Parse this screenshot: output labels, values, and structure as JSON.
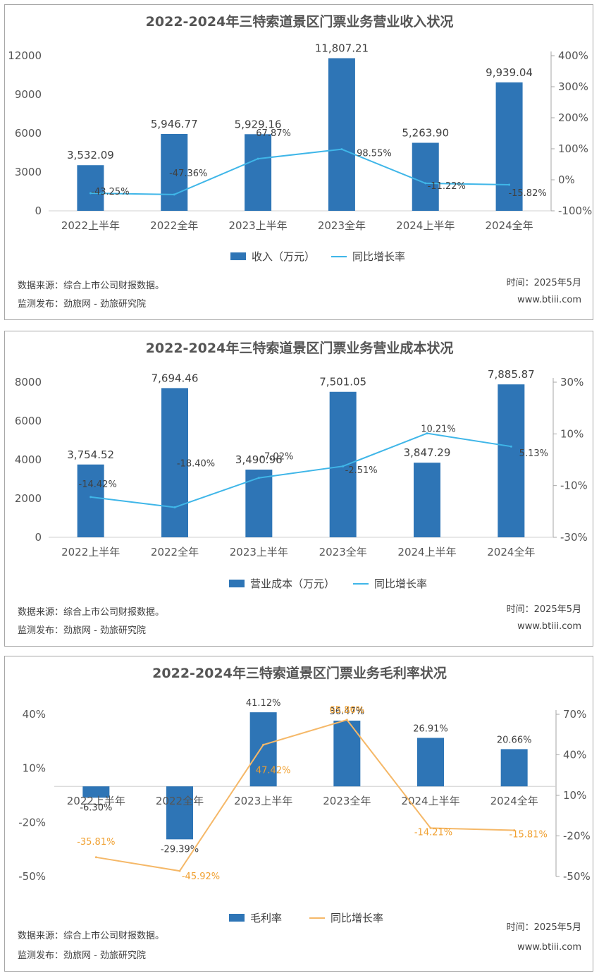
{
  "colors": {
    "bar": "#2e75b6",
    "line_blue": "#3fb6e8",
    "line_orange": "#f5b868",
    "label_orange": "#f0a030",
    "axis": "#a6a6a6"
  },
  "footer": {
    "source": "数据来源：综合上市公司财报数据。",
    "publisher": "监测发布：劲旅网 - 劲旅研究院",
    "time": "时间：2025年5月",
    "site": "www.btiii.com"
  },
  "chart_data": [
    {
      "type": "bar",
      "title": "2022-2024年三特索道景区门票业务营业收入状况",
      "categories": [
        "2022上半年",
        "2022全年",
        "2023上半年",
        "2023全年",
        "2024上半年",
        "2024全年"
      ],
      "series": [
        {
          "name": "收入（万元）",
          "type": "bar",
          "axis": "left",
          "values": [
            3532.09,
            5946.77,
            5929.16,
            11807.21,
            5263.9,
            9939.04
          ],
          "labels": [
            "3,532.09",
            "5,946.77",
            "5,929.16",
            "11,807.21",
            "5,263.90",
            "9,939.04"
          ]
        },
        {
          "name": "同比增长率",
          "type": "line",
          "axis": "right",
          "values": [
            -43.25,
            -47.36,
            67.87,
            98.55,
            -11.22,
            -15.82
          ],
          "labels": [
            "-43.25%",
            "-47.36%",
            "67.87%",
            "98.55%",
            "-11.22%",
            "-15.82%"
          ]
        }
      ],
      "y_left": {
        "min": 0,
        "max": 12000,
        "ticks": [
          "0",
          "3000",
          "6000",
          "9000",
          "12000"
        ]
      },
      "y_right": {
        "min": -100,
        "max": 400,
        "ticks": [
          "-100%",
          "0%",
          "100%",
          "200%",
          "300%",
          "400%"
        ]
      },
      "legend": "bottom"
    },
    {
      "type": "bar",
      "title": "2022-2024年三特索道景区门票业务营业成本状况",
      "categories": [
        "2022上半年",
        "2022全年",
        "2023上半年",
        "2023全年",
        "2024上半年",
        "2024全年"
      ],
      "series": [
        {
          "name": "营业成本（万元）",
          "type": "bar",
          "axis": "left",
          "values": [
            3754.52,
            7694.46,
            3490.96,
            7501.05,
            3847.29,
            7885.87
          ],
          "labels": [
            "3,754.52",
            "7,694.46",
            "3,490.96",
            "7,501.05",
            "3,847.29",
            "7,885.87"
          ]
        },
        {
          "name": "同比增长率",
          "type": "line",
          "axis": "right",
          "values": [
            -14.42,
            -18.4,
            -7.02,
            -2.51,
            10.21,
            5.13
          ],
          "labels": [
            "-14.42%",
            "-18.40%",
            "-7.02%",
            "-2.51%",
            "10.21%",
            "5.13%"
          ]
        }
      ],
      "y_left": {
        "min": 0,
        "max": 8000,
        "ticks": [
          "0",
          "2000",
          "4000",
          "6000",
          "8000"
        ]
      },
      "y_right": {
        "min": -30,
        "max": 30,
        "ticks": [
          "-30%",
          "-10%",
          "10%",
          "30%"
        ]
      },
      "legend": "bottom"
    },
    {
      "type": "bar",
      "title": "2022-2024年三特索道景区门票业务毛利率状况",
      "categories": [
        "2022上半年",
        "2022全年",
        "2023上半年",
        "2023全年",
        "2024上半年",
        "2024全年"
      ],
      "series": [
        {
          "name": "毛利率",
          "type": "bar",
          "axis": "left",
          "values": [
            -6.3,
            -29.39,
            41.12,
            36.47,
            26.91,
            20.66
          ],
          "labels": [
            "-6.30%",
            "-29.39%",
            "41.12%",
            "36.47%",
            "26.91%",
            "20.66%"
          ]
        },
        {
          "name": "同比增长率",
          "type": "line",
          "axis": "right",
          "values": [
            -35.81,
            -45.92,
            47.42,
            65.86,
            -14.21,
            -15.81
          ],
          "labels": [
            "-35.81%",
            "-45.92%",
            "47.42%",
            "65.86%",
            "-14.21%",
            "-15.81%"
          ]
        }
      ],
      "y_left": {
        "min": -50,
        "max": 40,
        "ticks": [
          "-50%",
          "-20%",
          "10%",
          "40%"
        ]
      },
      "y_right": {
        "min": -50,
        "max": 70,
        "ticks": [
          "-50%",
          "-20%",
          "10%",
          "40%",
          "70%"
        ]
      },
      "legend": "bottom"
    }
  ]
}
